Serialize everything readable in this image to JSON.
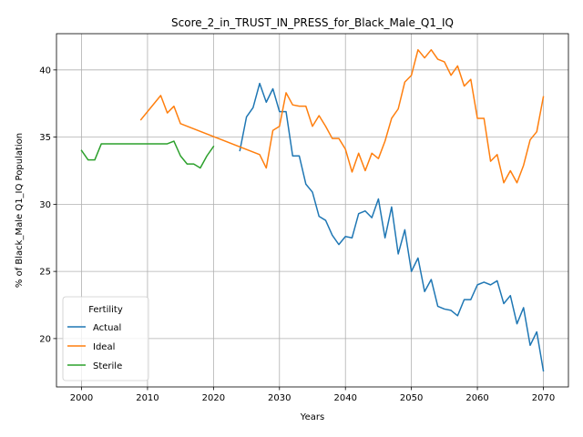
{
  "chart_data": {
    "type": "line",
    "title": "Score_2_in_TRUST_IN_PRESS_for_Black_Male_Q1_IQ",
    "xlabel": "Years",
    "ylabel": "% of Black_Male Q1_IQ Population",
    "xlim": [
      1996.2,
      2073.8
    ],
    "ylim": [
      16.4,
      42.7
    ],
    "x_ticks": [
      2000,
      2010,
      2020,
      2030,
      2040,
      2050,
      2060,
      2070
    ],
    "y_ticks": [
      20,
      25,
      30,
      35,
      40
    ],
    "grid": true,
    "legend": {
      "title": "Fertility",
      "placement": "lower-left"
    },
    "series": [
      {
        "name": "Actual",
        "color": "#1f77b4",
        "x": [
          2024,
          2025,
          2026,
          2027,
          2028,
          2029,
          2030,
          2031,
          2032,
          2033,
          2034,
          2035,
          2036,
          2037,
          2038,
          2039,
          2040,
          2041,
          2042,
          2043,
          2044,
          2045,
          2046,
          2047,
          2048,
          2049,
          2050,
          2051,
          2052,
          2053,
          2054,
          2055,
          2056,
          2057,
          2058,
          2059,
          2060,
          2061,
          2062,
          2063,
          2064,
          2065,
          2066,
          2067,
          2068,
          2069,
          2070
        ],
        "y": [
          34.0,
          36.5,
          37.2,
          39.0,
          37.6,
          38.6,
          36.9,
          36.9,
          33.6,
          33.6,
          31.5,
          30.9,
          29.1,
          28.8,
          27.7,
          27.0,
          27.6,
          27.5,
          29.3,
          29.5,
          29.0,
          30.4,
          27.5,
          29.8,
          26.3,
          28.1,
          25.0,
          26.0,
          23.5,
          24.4,
          22.4,
          22.2,
          22.1,
          21.7,
          22.9,
          22.9,
          24.0,
          24.2,
          24.0,
          24.3,
          22.6,
          23.2,
          21.1,
          22.3,
          19.5,
          20.5,
          17.6
        ]
      },
      {
        "name": "Ideal",
        "color": "#ff7f0e",
        "x": [
          2009,
          2012,
          2013,
          2014,
          2015,
          2027,
          2028,
          2029,
          2030,
          2031,
          2032,
          2033,
          2034,
          2035,
          2036,
          2037,
          2038,
          2039,
          2040,
          2041,
          2042,
          2043,
          2044,
          2045,
          2046,
          2047,
          2048,
          2049,
          2050,
          2051,
          2052,
          2053,
          2054,
          2055,
          2056,
          2057,
          2058,
          2059,
          2060,
          2061,
          2062,
          2063,
          2064,
          2065,
          2066,
          2067,
          2068,
          2069,
          2070
        ],
        "y": [
          36.3,
          38.1,
          36.8,
          37.3,
          36.0,
          33.7,
          32.7,
          35.5,
          35.8,
          38.3,
          37.4,
          37.3,
          37.3,
          35.8,
          36.6,
          35.8,
          34.9,
          34.9,
          34.1,
          32.4,
          33.8,
          32.5,
          33.8,
          33.4,
          34.7,
          36.4,
          37.1,
          39.1,
          39.6,
          41.5,
          40.9,
          41.5,
          40.8,
          40.6,
          39.6,
          40.3,
          38.8,
          39.3,
          36.4,
          36.4,
          33.2,
          33.7,
          31.6,
          32.5,
          31.6,
          32.9,
          34.8,
          35.4,
          38.0
        ]
      },
      {
        "name": "Sterile",
        "color": "#2ca02c",
        "x": [
          2000,
          2001,
          2002,
          2003,
          2013,
          2014,
          2015,
          2016,
          2017,
          2018,
          2019,
          2020
        ],
        "y": [
          34.0,
          33.3,
          33.3,
          34.5,
          34.5,
          34.7,
          33.6,
          33.0,
          33.0,
          32.7,
          33.6,
          34.3
        ]
      }
    ]
  }
}
